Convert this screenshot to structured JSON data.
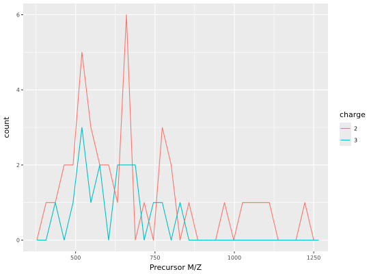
{
  "chart_data": {
    "type": "line",
    "xlabel": "Precursor M/Z",
    "ylabel": "count",
    "xlim": [
      335,
      1295
    ],
    "ylim": [
      -0.3,
      6.3
    ],
    "xticks": [
      500,
      750,
      1000,
      1250
    ],
    "yticks": [
      0,
      2,
      4,
      6
    ],
    "legend_title": "charge",
    "legend_position": "right",
    "grid": true,
    "series": [
      {
        "name": "2",
        "color": "#f8766d",
        "x": [
          378,
          407,
          436,
          464,
          492,
          520,
          548,
          576,
          604,
          632,
          660,
          688,
          716,
          745,
          773,
          801,
          829,
          857,
          885,
          913,
          941,
          969,
          998,
          1026,
          1054,
          1082,
          1110,
          1138,
          1166,
          1194,
          1222,
          1250,
          1266
        ],
        "y": [
          0,
          1,
          1,
          2,
          2,
          5,
          3,
          2,
          2,
          1,
          6,
          0,
          1,
          0,
          3,
          2,
          0,
          1,
          0,
          0,
          0,
          1,
          0,
          1,
          1,
          1,
          1,
          0,
          0,
          0,
          1,
          0,
          0
        ]
      },
      {
        "name": "3",
        "color": "#00bfc4",
        "x": [
          378,
          407,
          436,
          464,
          492,
          520,
          548,
          576,
          604,
          632,
          660,
          688,
          716,
          745,
          773,
          801,
          829,
          857,
          885,
          913,
          941,
          969,
          998,
          1026,
          1054,
          1082,
          1110,
          1138,
          1166,
          1194,
          1222,
          1250,
          1266
        ],
        "y": [
          0,
          0,
          1,
          0,
          1,
          3,
          1,
          2,
          0,
          2,
          2,
          2,
          0,
          1,
          1,
          0,
          1,
          0,
          0,
          0,
          0,
          0,
          0,
          0,
          0,
          0,
          0,
          0,
          0,
          0,
          0,
          0,
          0
        ]
      }
    ]
  }
}
